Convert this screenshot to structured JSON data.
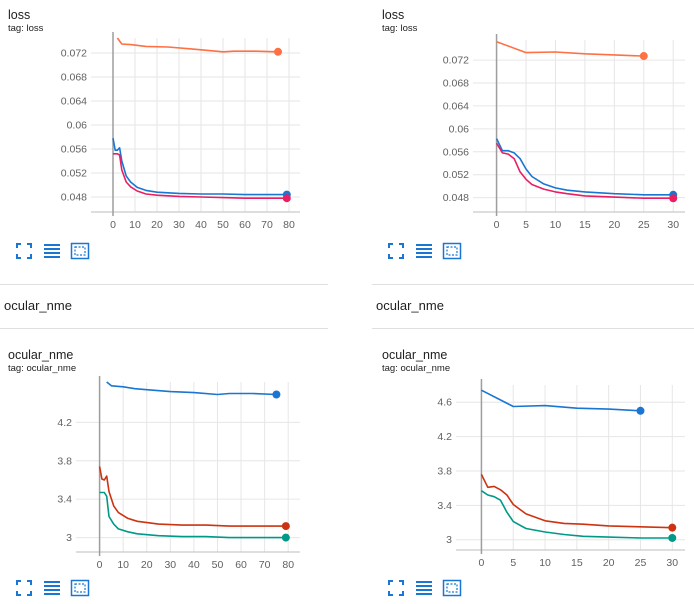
{
  "sections": {
    "left_title": "ocular_nme",
    "right_title": "ocular_nme"
  },
  "cards": {
    "loss_left": {
      "title": "loss",
      "tag": "tag: loss"
    },
    "loss_right": {
      "title": "loss",
      "tag": "tag: loss"
    },
    "nme_left": {
      "title": "ocular_nme",
      "tag": "tag: ocular_nme"
    },
    "nme_right": {
      "title": "ocular_nme",
      "tag": "tag: ocular_nme"
    }
  },
  "toolbar_icons": [
    "fullscreen-icon",
    "data-table-icon",
    "fit-domain-icon"
  ],
  "colors": {
    "orange": "#ff7043",
    "blue": "#1976d2",
    "pink": "#e91e63",
    "red": "#cc3311",
    "teal": "#009988",
    "axis_line": "#9e9e9e",
    "grid": "#e6e6e6",
    "icon": "#1976d2"
  },
  "chart_data": [
    {
      "id": "loss_left",
      "type": "line",
      "title": "loss",
      "subtitle": "tag: loss",
      "xlim": [
        -10,
        85
      ],
      "ylim": [
        0.0455,
        0.0745
      ],
      "xticks": [
        0,
        10,
        20,
        30,
        40,
        50,
        60,
        70,
        80
      ],
      "yticks": [
        0.048,
        0.052,
        0.056,
        0.06,
        0.064,
        0.068,
        0.072
      ],
      "ytick_labels": [
        "0.048",
        "0.052",
        "0.056",
        "0.06",
        "0.064",
        "0.068",
        "0.072"
      ],
      "series": [
        {
          "name": "orange",
          "color": "#ff7043",
          "points": [
            [
              2,
              0.0745
            ],
            [
              4,
              0.0735
            ],
            [
              8,
              0.0734
            ],
            [
              15,
              0.0731
            ],
            [
              25,
              0.073
            ],
            [
              35,
              0.0727
            ],
            [
              50,
              0.0722
            ],
            [
              55,
              0.0723
            ],
            [
              65,
              0.0723
            ],
            [
              75,
              0.0722
            ]
          ]
        },
        {
          "name": "blue",
          "color": "#1976d2",
          "points": [
            [
              0,
              0.0578
            ],
            [
              1,
              0.0558
            ],
            [
              2,
              0.0558
            ],
            [
              3,
              0.0562
            ],
            [
              4,
              0.054
            ],
            [
              6,
              0.0515
            ],
            [
              8,
              0.0505
            ],
            [
              11,
              0.0496
            ],
            [
              15,
              0.0491
            ],
            [
              20,
              0.0488
            ],
            [
              30,
              0.0486
            ],
            [
              40,
              0.0485
            ],
            [
              50,
              0.0485
            ],
            [
              60,
              0.0484
            ],
            [
              70,
              0.0484
            ],
            [
              79,
              0.0484
            ]
          ]
        },
        {
          "name": "pink",
          "color": "#e91e63",
          "points": [
            [
              0,
              0.0552
            ],
            [
              2,
              0.0552
            ],
            [
              3,
              0.055
            ],
            [
              4,
              0.0525
            ],
            [
              6,
              0.0505
            ],
            [
              8,
              0.0497
            ],
            [
              11,
              0.049
            ],
            [
              15,
              0.0485
            ],
            [
              20,
              0.0483
            ],
            [
              30,
              0.0481
            ],
            [
              40,
              0.048
            ],
            [
              50,
              0.0479
            ],
            [
              60,
              0.0478
            ],
            [
              70,
              0.0478
            ],
            [
              79,
              0.0478
            ]
          ]
        }
      ]
    },
    {
      "id": "loss_right",
      "type": "line",
      "title": "loss",
      "subtitle": "tag: loss",
      "xlim": [
        -4,
        32
      ],
      "ylim": [
        0.0455,
        0.0755
      ],
      "xticks": [
        0,
        5,
        10,
        15,
        20,
        25,
        30
      ],
      "yticks": [
        0.048,
        0.052,
        0.056,
        0.06,
        0.064,
        0.068,
        0.072
      ],
      "ytick_labels": [
        "0.048",
        "0.052",
        "0.056",
        "0.06",
        "0.064",
        "0.068",
        "0.072"
      ],
      "series": [
        {
          "name": "orange",
          "color": "#ff7043",
          "points": [
            [
              0,
              0.0752
            ],
            [
              5,
              0.0733
            ],
            [
              10,
              0.0734
            ],
            [
              15,
              0.0731
            ],
            [
              20,
              0.0729
            ],
            [
              25,
              0.0727
            ]
          ]
        },
        {
          "name": "blue",
          "color": "#1976d2",
          "points": [
            [
              0,
              0.0583
            ],
            [
              1,
              0.0562
            ],
            [
              2,
              0.0562
            ],
            [
              3,
              0.0558
            ],
            [
              4,
              0.0548
            ],
            [
              5,
              0.053
            ],
            [
              6,
              0.0517
            ],
            [
              8,
              0.0504
            ],
            [
              10,
              0.0497
            ],
            [
              12,
              0.0493
            ],
            [
              15,
              0.049
            ],
            [
              20,
              0.0487
            ],
            [
              25,
              0.0485
            ],
            [
              30,
              0.0485
            ]
          ]
        },
        {
          "name": "pink",
          "color": "#e91e63",
          "points": [
            [
              0,
              0.0575
            ],
            [
              1,
              0.0558
            ],
            [
              2,
              0.0556
            ],
            [
              3,
              0.0548
            ],
            [
              4,
              0.0525
            ],
            [
              5,
              0.0512
            ],
            [
              6,
              0.0503
            ],
            [
              8,
              0.0495
            ],
            [
              10,
              0.049
            ],
            [
              12,
              0.0487
            ],
            [
              15,
              0.0483
            ],
            [
              20,
              0.0481
            ],
            [
              25,
              0.0479
            ],
            [
              30,
              0.0479
            ]
          ]
        }
      ]
    },
    {
      "id": "nme_left",
      "type": "line",
      "title": "ocular_nme",
      "subtitle": "tag: ocular_nme",
      "xlim": [
        -10,
        85
      ],
      "ylim": [
        2.85,
        4.62
      ],
      "xticks": [
        0,
        10,
        20,
        30,
        40,
        50,
        60,
        70,
        80
      ],
      "yticks": [
        3.0,
        3.4,
        3.8,
        4.2
      ],
      "ytick_labels": [
        "3",
        "3.4",
        "3.8",
        "4.2"
      ],
      "series": [
        {
          "name": "blue",
          "color": "#1976d2",
          "points": [
            [
              3,
              4.62
            ],
            [
              5,
              4.58
            ],
            [
              10,
              4.57
            ],
            [
              15,
              4.55
            ],
            [
              20,
              4.54
            ],
            [
              30,
              4.52
            ],
            [
              40,
              4.51
            ],
            [
              50,
              4.49
            ],
            [
              55,
              4.5
            ],
            [
              65,
              4.5
            ],
            [
              75,
              4.49
            ]
          ]
        },
        {
          "name": "red",
          "color": "#cc3311",
          "points": [
            [
              0,
              3.74
            ],
            [
              1,
              3.61
            ],
            [
              2,
              3.6
            ],
            [
              3,
              3.64
            ],
            [
              4,
              3.48
            ],
            [
              6,
              3.33
            ],
            [
              8,
              3.26
            ],
            [
              12,
              3.2
            ],
            [
              16,
              3.17
            ],
            [
              25,
              3.14
            ],
            [
              35,
              3.13
            ],
            [
              45,
              3.13
            ],
            [
              55,
              3.12
            ],
            [
              65,
              3.12
            ],
            [
              79,
              3.12
            ]
          ]
        },
        {
          "name": "teal",
          "color": "#009988",
          "points": [
            [
              0,
              3.47
            ],
            [
              2,
              3.47
            ],
            [
              3,
              3.43
            ],
            [
              4,
              3.22
            ],
            [
              6,
              3.14
            ],
            [
              8,
              3.09
            ],
            [
              12,
              3.06
            ],
            [
              16,
              3.04
            ],
            [
              25,
              3.02
            ],
            [
              35,
              3.01
            ],
            [
              45,
              3.01
            ],
            [
              55,
              3.0
            ],
            [
              65,
              3.0
            ],
            [
              79,
              3.0
            ]
          ]
        }
      ]
    },
    {
      "id": "nme_right",
      "type": "line",
      "title": "ocular_nme",
      "subtitle": "tag: ocular_nme",
      "xlim": [
        -4,
        32
      ],
      "ylim": [
        2.88,
        4.8
      ],
      "xticks": [
        0,
        5,
        10,
        15,
        20,
        25,
        30
      ],
      "yticks": [
        3.0,
        3.4,
        3.8,
        4.2,
        4.6
      ],
      "ytick_labels": [
        "3",
        "3.4",
        "3.8",
        "4.2",
        "4.6"
      ],
      "series": [
        {
          "name": "blue",
          "color": "#1976d2",
          "points": [
            [
              0,
              4.74
            ],
            [
              5,
              4.55
            ],
            [
              10,
              4.56
            ],
            [
              15,
              4.53
            ],
            [
              20,
              4.52
            ],
            [
              25,
              4.5
            ]
          ]
        },
        {
          "name": "red",
          "color": "#cc3311",
          "points": [
            [
              0,
              3.76
            ],
            [
              1,
              3.61
            ],
            [
              2,
              3.62
            ],
            [
              3,
              3.58
            ],
            [
              4,
              3.52
            ],
            [
              5,
              3.41
            ],
            [
              7,
              3.3
            ],
            [
              10,
              3.22
            ],
            [
              13,
              3.19
            ],
            [
              16,
              3.18
            ],
            [
              20,
              3.16
            ],
            [
              25,
              3.15
            ],
            [
              30,
              3.14
            ]
          ]
        },
        {
          "name": "teal",
          "color": "#009988",
          "points": [
            [
              0,
              3.57
            ],
            [
              1,
              3.52
            ],
            [
              2,
              3.5
            ],
            [
              3,
              3.46
            ],
            [
              4,
              3.32
            ],
            [
              5,
              3.21
            ],
            [
              7,
              3.13
            ],
            [
              10,
              3.09
            ],
            [
              13,
              3.06
            ],
            [
              16,
              3.04
            ],
            [
              20,
              3.03
            ],
            [
              25,
              3.02
            ],
            [
              30,
              3.02
            ]
          ]
        }
      ]
    }
  ]
}
